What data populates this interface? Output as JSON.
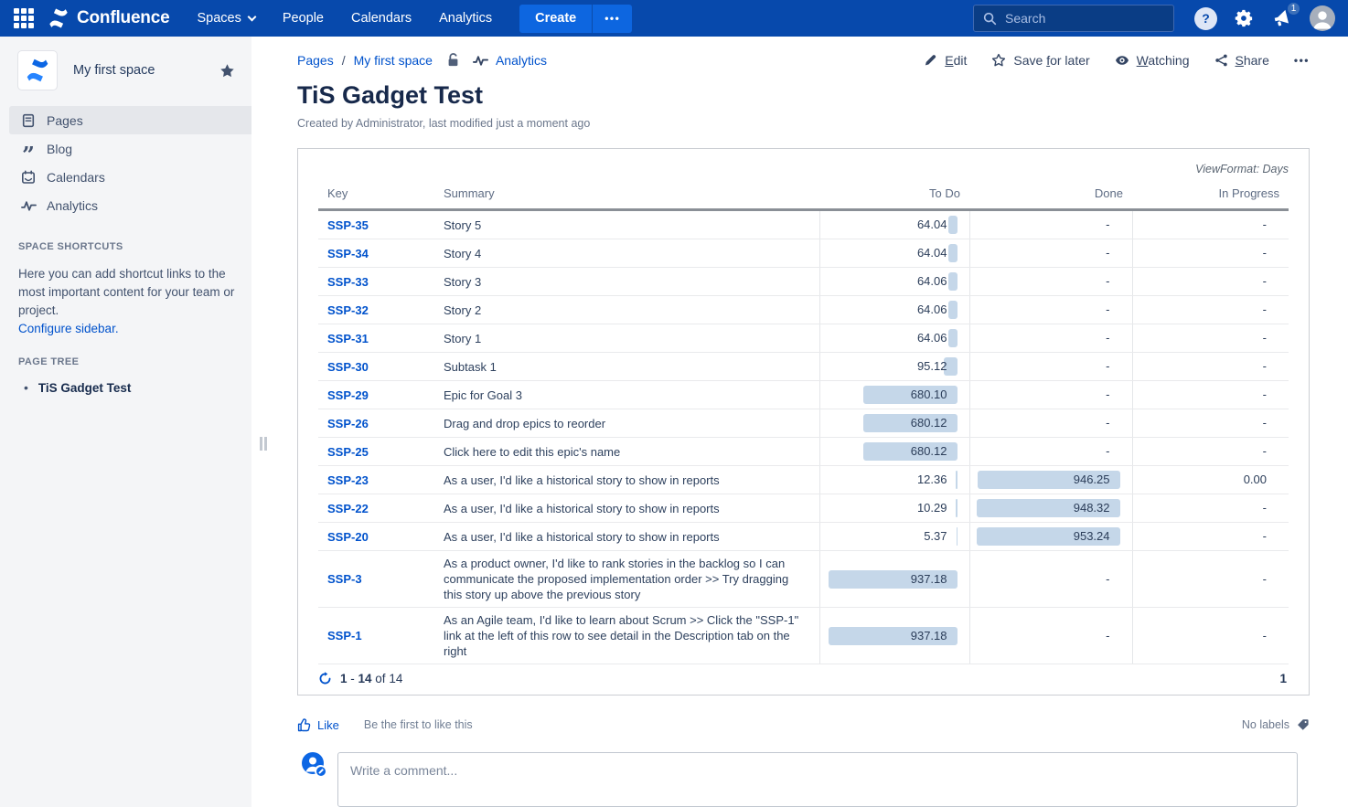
{
  "nav": {
    "brand": "Confluence",
    "items": [
      {
        "label": "Spaces",
        "chevron": true
      },
      {
        "label": "People"
      },
      {
        "label": "Calendars"
      },
      {
        "label": "Analytics"
      }
    ],
    "create_label": "Create",
    "more_label": "•••",
    "search_placeholder": "Search",
    "notification_badge": "1"
  },
  "sidebar": {
    "space_name": "My first space",
    "nav_items": [
      {
        "label": "Pages",
        "icon": "pages-icon",
        "selected": true
      },
      {
        "label": "Blog",
        "icon": "blog-icon",
        "selected": false
      },
      {
        "label": "Calendars",
        "icon": "calendar-icon",
        "selected": false
      },
      {
        "label": "Analytics",
        "icon": "analytics-icon",
        "selected": false
      }
    ],
    "space_shortcuts_heading": "SPACE SHORTCUTS",
    "space_shortcuts_text": "Here you can add shortcut links to the most important content for your team or project.",
    "configure_sidebar_link": "Configure sidebar.",
    "page_tree_heading": "PAGE TREE",
    "page_tree": [
      {
        "label": "TiS Gadget Test",
        "current": true
      }
    ]
  },
  "breadcrumb": {
    "items": [
      "Pages",
      "My first space"
    ],
    "separator": "/",
    "analytics_label": "Analytics"
  },
  "page_actions": [
    {
      "label": "Edit",
      "underline": "E",
      "icon": "pencil-icon"
    },
    {
      "label": "Save for later",
      "underline": "f",
      "icon": "star-icon"
    },
    {
      "label": "Watching",
      "underline": "W",
      "icon": "eye-icon"
    },
    {
      "label": "Share",
      "underline": "S",
      "icon": "share-icon"
    }
  ],
  "page_actions_more": "•••",
  "page": {
    "title": "TiS Gadget Test",
    "byline": "Created by Administrator, last modified just a moment ago"
  },
  "gadget": {
    "view_format_label": "ViewFormat: Days",
    "columns": [
      "Key",
      "Summary",
      "To Do",
      "Done",
      "In Progress"
    ],
    "max_value": 953.24,
    "rows": [
      {
        "key": "SSP-35",
        "summary": "Story 5",
        "todo": "64.04",
        "done": "-",
        "inprogress": "-"
      },
      {
        "key": "SSP-34",
        "summary": "Story 4",
        "todo": "64.04",
        "done": "-",
        "inprogress": "-"
      },
      {
        "key": "SSP-33",
        "summary": "Story 3",
        "todo": "64.06",
        "done": "-",
        "inprogress": "-"
      },
      {
        "key": "SSP-32",
        "summary": "Story 2",
        "todo": "64.06",
        "done": "-",
        "inprogress": "-"
      },
      {
        "key": "SSP-31",
        "summary": "Story 1",
        "todo": "64.06",
        "done": "-",
        "inprogress": "-"
      },
      {
        "key": "SSP-30",
        "summary": "Subtask 1",
        "todo": "95.12",
        "done": "-",
        "inprogress": "-"
      },
      {
        "key": "SSP-29",
        "summary": "Epic for Goal 3",
        "todo": "680.10",
        "done": "-",
        "inprogress": "-"
      },
      {
        "key": "SSP-26",
        "summary": "Drag and drop epics to reorder",
        "todo": "680.12",
        "done": "-",
        "inprogress": "-"
      },
      {
        "key": "SSP-25",
        "summary": "Click here to edit this epic's name",
        "todo": "680.12",
        "done": "-",
        "inprogress": "-"
      },
      {
        "key": "SSP-23",
        "summary": "As a user, I'd like a historical story to show in reports",
        "todo": "12.36",
        "done": "946.25",
        "inprogress": "0.00"
      },
      {
        "key": "SSP-22",
        "summary": "As a user, I'd like a historical story to show in reports",
        "todo": "10.29",
        "done": "948.32",
        "inprogress": "-"
      },
      {
        "key": "SSP-20",
        "summary": "As a user, I'd like a historical story to show in reports",
        "todo": "5.37",
        "done": "953.24",
        "inprogress": "-"
      },
      {
        "key": "SSP-3",
        "summary": "As a product owner, I'd like to rank stories in the backlog so I can communicate the proposed implementation order >> Try dragging this story up above the previous story",
        "todo": "937.18",
        "done": "-",
        "inprogress": "-"
      },
      {
        "key": "SSP-1",
        "summary": "As an Agile team, I'd like to learn about Scrum >> Click the \"SSP-1\" link at the left of this row to see detail in the Description tab on the right",
        "todo": "937.18",
        "done": "-",
        "inprogress": "-"
      }
    ],
    "pagination": {
      "start": "1",
      "sep": " - ",
      "end": "14",
      "of_label": " of ",
      "total": "14",
      "page": "1"
    }
  },
  "social": {
    "like_label": "Like",
    "like_hint": "Be the first to like this",
    "labels_text": "No labels"
  },
  "comment": {
    "placeholder": "Write a comment..."
  },
  "colors": {
    "accent": "#0052CC",
    "top_nav_bg": "#0749AC",
    "create_button_bg": "#0D66E0",
    "value_bar_fill": "#C5D7E9",
    "sidebar_bg": "#F4F5F7"
  }
}
